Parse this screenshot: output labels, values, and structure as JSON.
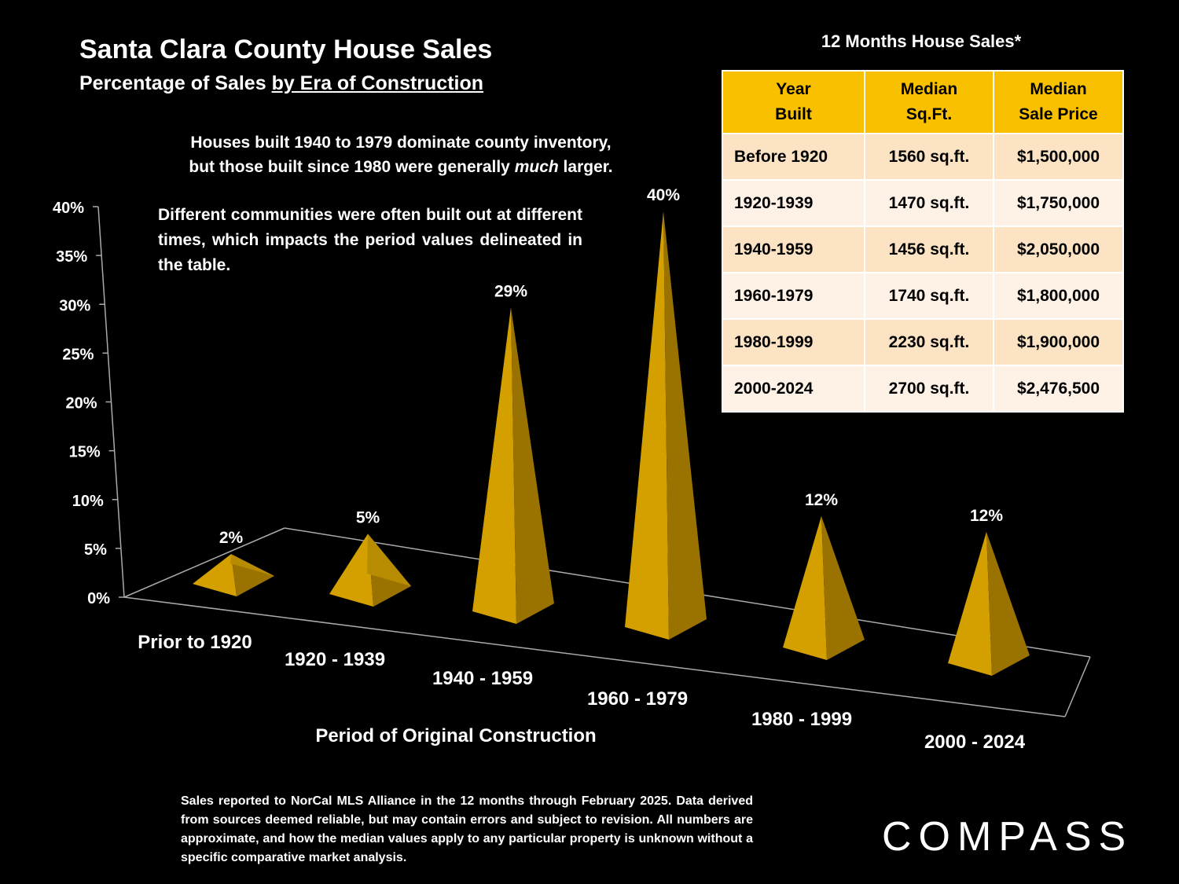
{
  "header": {
    "title": "Santa Clara County House Sales",
    "subtitle_prefix": "Percentage of Sales ",
    "subtitle_underlined": "by Era of Construction"
  },
  "notes": {
    "note1_line1": "Houses built 1940 to 1979 dominate county inventory,",
    "note1_line2_a": "but those built since 1980 were generally ",
    "note1_line2_em": "much",
    "note1_line2_b": " larger.",
    "note2": "Different communities were often built out at different times, which impacts the period values delineated in the table."
  },
  "chart_data": {
    "type": "bar",
    "shape": "3d-pyramid",
    "title": "Santa Clara County House Sales",
    "subtitle": "Percentage of Sales by Era of Construction",
    "xlabel": "Period of Original Construction",
    "ylabel": "",
    "categories": [
      "Prior to 1920",
      "1920 - 1939",
      "1940 - 1959",
      "1960 - 1979",
      "1980 - 1999",
      "2000 - 2024"
    ],
    "values": [
      2,
      5,
      29,
      40,
      12,
      12
    ],
    "value_labels": [
      "2%",
      "5%",
      "29%",
      "40%",
      "12%",
      "12%"
    ],
    "y_ticks": [
      "0%",
      "5%",
      "10%",
      "15%",
      "20%",
      "25%",
      "30%",
      "35%",
      "40%"
    ],
    "ylim": [
      0,
      40
    ],
    "color": "#d4a000",
    "legend": "none",
    "grid": false
  },
  "table": {
    "title": "12 Months House Sales*",
    "headers": [
      [
        "Year",
        "Built"
      ],
      [
        "Median",
        "Sq.Ft."
      ],
      [
        "Median",
        "Sale Price"
      ]
    ],
    "rows": [
      [
        "Before 1920",
        "1560 sq.ft.",
        "$1,500,000"
      ],
      [
        "1920-1939",
        "1470 sq.ft.",
        "$1,750,000"
      ],
      [
        "1940-1959",
        "1456 sq.ft.",
        "$2,050,000"
      ],
      [
        "1960-1979",
        "1740 sq.ft.",
        "$1,800,000"
      ],
      [
        "1980-1999",
        "2230 sq.ft.",
        "$1,900,000"
      ],
      [
        "2000-2024",
        "2700 sq.ft.",
        "$2,476,500"
      ]
    ],
    "header_color": "#f9c000"
  },
  "footnote": "Sales reported to NorCal MLS Alliance in the 12 months through February 2025. Data derived from sources deemed reliable, but may contain errors and subject to revision. All numbers are approximate, and how the median values apply to any particular property is unknown without a specific comparative market analysis.",
  "brand": {
    "logo_text": "COMPASS"
  }
}
